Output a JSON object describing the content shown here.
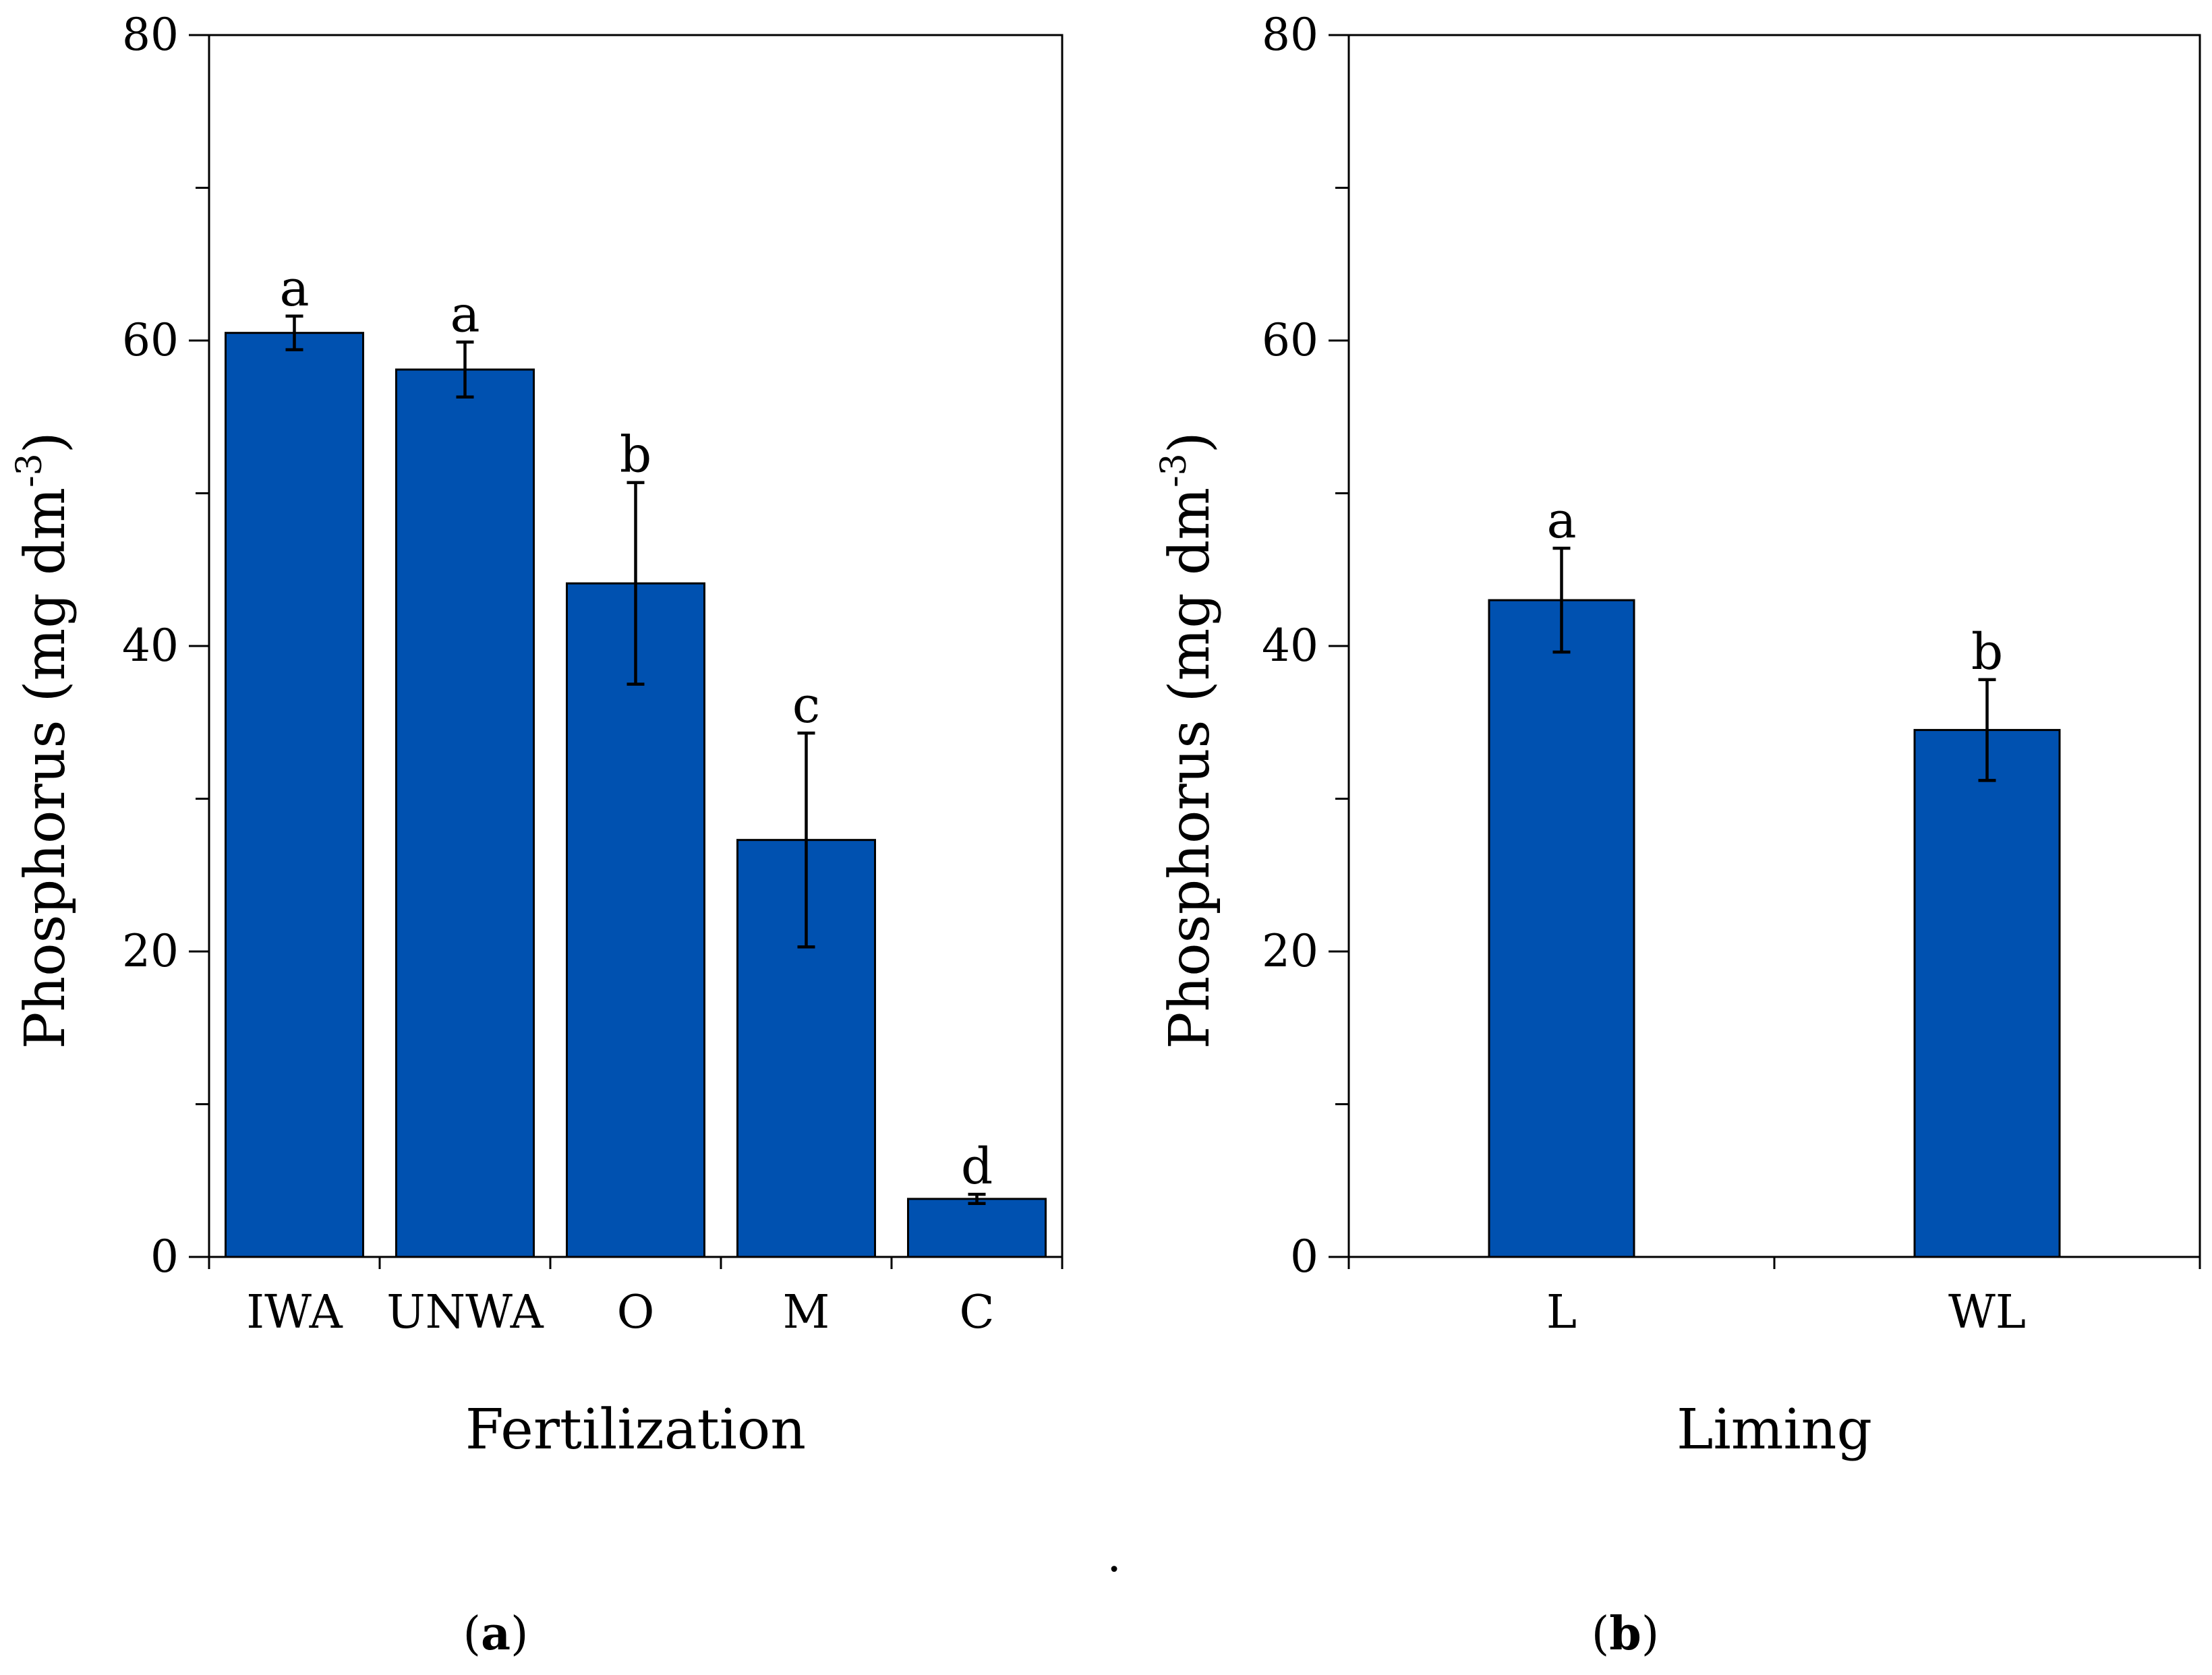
{
  "colors": {
    "bar_fill": "#0051B0",
    "axis": "#000000"
  },
  "separator_dot": ".",
  "chart_data": [
    {
      "type": "bar",
      "panel_label": "(a)",
      "xlabel": "Fertilization",
      "ylabel": "Phosphorus (mg dm",
      "ylabel_sup": "-3",
      "ylabel_close": ")",
      "ylim": [
        0,
        80
      ],
      "yticks": [
        0,
        20,
        40,
        60,
        80
      ],
      "yticks_minor": [
        10,
        30,
        50,
        70
      ],
      "categories": [
        "IWA",
        "UNWA",
        "O",
        "M",
        "C"
      ],
      "values": [
        60.5,
        58.1,
        44.1,
        27.3,
        3.8
      ],
      "error": [
        1.1,
        1.8,
        6.6,
        7.0,
        0.3
      ],
      "significance": [
        "a",
        "a",
        "b",
        "c",
        "d"
      ],
      "grid": false
    },
    {
      "type": "bar",
      "panel_label": "(b)",
      "xlabel": "Liming",
      "ylabel": "Phosphorus (mg dm",
      "ylabel_sup": "-3",
      "ylabel_close": ")",
      "ylim": [
        0,
        80
      ],
      "yticks": [
        0,
        20,
        40,
        60,
        80
      ],
      "yticks_minor": [
        10,
        30,
        50,
        70
      ],
      "categories": [
        "L",
        "WL"
      ],
      "values": [
        43.0,
        34.5
      ],
      "error": [
        3.4,
        3.3
      ],
      "significance": [
        "a",
        "b"
      ],
      "grid": false
    }
  ]
}
